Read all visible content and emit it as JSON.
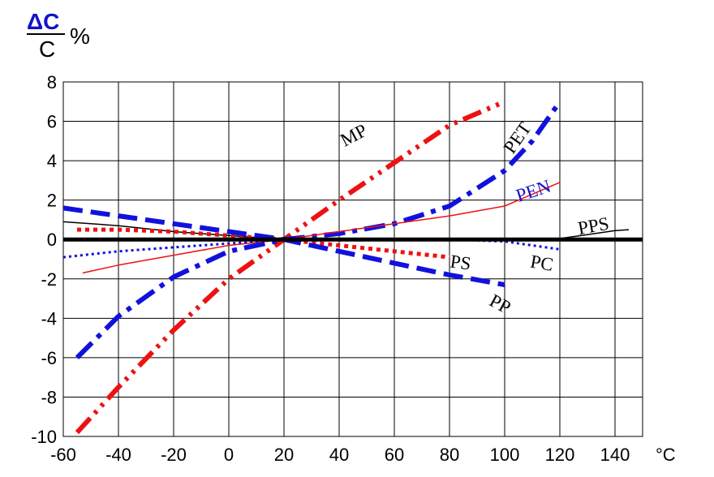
{
  "chart_data": {
    "type": "line",
    "ylabel": {
      "numerator": "ΔC",
      "denominator": "C",
      "unit": "%"
    },
    "x_unit": "°C",
    "xlim": [
      -60,
      150
    ],
    "ylim": [
      -10,
      8
    ],
    "x_ticks": [
      "-60",
      "-40",
      "-20",
      "0",
      "20",
      "40",
      "60",
      "80",
      "100",
      "120",
      "140"
    ],
    "y_ticks": [
      "-10",
      "-8",
      "-6",
      "-4",
      "-2",
      "0",
      "2",
      "4",
      "6",
      "8"
    ],
    "grid": true,
    "series": [
      {
        "name": "MP",
        "color": "#ee1111",
        "style": "dashdotdot",
        "x": [
          -55,
          -40,
          -20,
          0,
          20,
          40,
          60,
          80,
          100
        ],
        "y": [
          -9.8,
          -7.5,
          -4.6,
          -2.0,
          0.0,
          2.0,
          3.9,
          5.8,
          7.0
        ]
      },
      {
        "name": "PET",
        "color": "#1111dd",
        "style": "dashdot",
        "x": [
          -55,
          -40,
          -20,
          0,
          20,
          40,
          60,
          80,
          100,
          110,
          120
        ],
        "y": [
          -6.0,
          -3.9,
          -1.9,
          -0.6,
          0.0,
          0.3,
          0.8,
          1.7,
          3.5,
          5.0,
          7.0
        ]
      },
      {
        "name": "PEN",
        "color": "#ee1111",
        "style": "solid-thin",
        "x": [
          -53,
          -40,
          -20,
          0,
          20,
          40,
          60,
          80,
          100,
          120
        ],
        "y": [
          -1.7,
          -1.3,
          -0.8,
          -0.3,
          0.0,
          0.4,
          0.8,
          1.2,
          1.7,
          2.9
        ]
      },
      {
        "name": "PPS",
        "color": "#000000",
        "style": "solid-thin",
        "x": [
          -60,
          -40,
          -20,
          0,
          20,
          40,
          60,
          80,
          100,
          120,
          130,
          140,
          145
        ],
        "y": [
          0.9,
          0.7,
          0.4,
          0.2,
          0.0,
          0.0,
          0.0,
          0.0,
          0.0,
          0.05,
          0.25,
          0.45,
          0.5
        ]
      },
      {
        "name": "PC",
        "color": "#1111dd",
        "style": "dotted",
        "x": [
          -60,
          -40,
          -20,
          0,
          20,
          40,
          60,
          80,
          100,
          120
        ],
        "y": [
          -0.9,
          -0.6,
          -0.4,
          -0.2,
          0.0,
          0.0,
          0.0,
          0.0,
          -0.1,
          -0.5
        ]
      },
      {
        "name": "PS",
        "color": "#ee1111",
        "style": "dotted-thick",
        "x": [
          -55,
          -40,
          -20,
          0,
          20,
          40,
          60,
          80
        ],
        "y": [
          0.5,
          0.5,
          0.4,
          0.2,
          0.0,
          -0.3,
          -0.6,
          -0.9
        ]
      },
      {
        "name": "PP",
        "color": "#1111dd",
        "style": "dashed-thick",
        "x": [
          -60,
          -40,
          -20,
          0,
          20,
          40,
          60,
          80,
          100
        ],
        "y": [
          1.6,
          1.2,
          0.8,
          0.4,
          0.0,
          -0.6,
          -1.2,
          -1.8,
          -2.3
        ]
      }
    ],
    "zero_line": {
      "value": 0,
      "color": "#000000"
    }
  }
}
